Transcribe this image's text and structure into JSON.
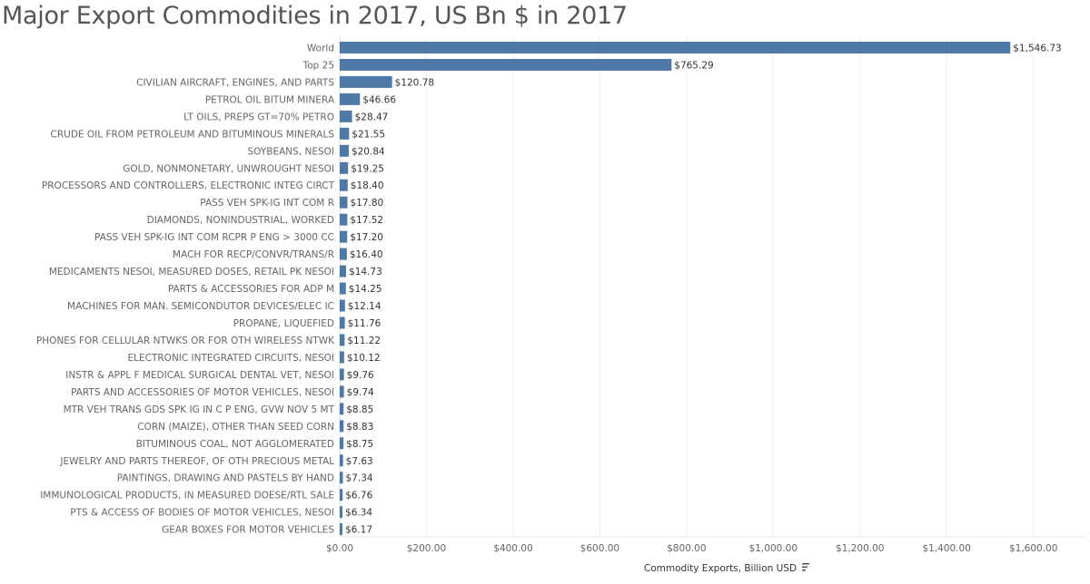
{
  "chart_data": {
    "type": "bar",
    "orientation": "horizontal",
    "title": "Major Export Commodities in 2017, US Bn $ in 2017",
    "xlabel": "Commodity Exports, Billion USD",
    "ylabel": "",
    "xlim": [
      0,
      1700
    ],
    "xticks": [
      0,
      200,
      400,
      600,
      800,
      1000,
      1200,
      1400,
      1600
    ],
    "xtick_labels": [
      "$0.00",
      "$200.00",
      "$400.00",
      "$600.00",
      "$800.00",
      "$1,000.00",
      "$1,200.00",
      "$1,400.00",
      "$1,600.00"
    ],
    "grid": true,
    "bar_color": "#4e79a7",
    "categories": [
      "World",
      "Top 25",
      "CIVILIAN AIRCRAFT, ENGINES, AND PARTS",
      "PETROL OIL BITUM MINERA",
      "LT OILS, PREPS GT=70% PETRO",
      "CRUDE OIL FROM PETROLEUM AND BITUMINOUS MINERALS",
      "SOYBEANS, NESOI",
      "GOLD, NONMONETARY, UNWROUGHT NESOI",
      "PROCESSORS AND CONTROLLERS, ELECTRONIC INTEG CIRCT",
      "PASS VEH SPK-IG INT COM R",
      "DIAMONDS, NONINDUSTRIAL, WORKED",
      "PASS VEH SPK-IG INT COM RCPR P ENG > 3000 CC",
      "MACH FOR RECP/CONVR/TRANS/R",
      "MEDICAMENTS NESOI, MEASURED DOSES, RETAIL PK NESOI",
      "PARTS & ACCESSORIES FOR ADP M",
      "MACHINES FOR MAN. SEMICONDUTOR DEVICES/ELEC IC",
      "PROPANE, LIQUEFIED",
      "PHONES FOR CELLULAR NTWKS OR FOR OTH WIRELESS NTWK",
      "ELECTRONIC INTEGRATED CIRCUITS, NESOI",
      "INSTR & APPL F MEDICAL SURGICAL DENTAL VET, NESOI",
      "PARTS AND ACCESSORIES OF MOTOR VEHICLES, NESOI",
      "MTR VEH TRANS GDS SPK IG IN C P ENG, GVW NOV 5 MT",
      "CORN (MAIZE), OTHER THAN SEED CORN",
      "BITUMINOUS COAL, NOT AGGLOMERATED",
      "JEWELRY AND PARTS THEREOF, OF OTH PRECIOUS METAL",
      "PAINTINGS, DRAWING AND PASTELS BY HAND",
      "IMMUNOLOGICAL PRODUCTS, IN MEASURED DOESE/RTL SALE",
      "PTS & ACCESS OF BODIES OF MOTOR VEHICLES, NESOI",
      "GEAR BOXES FOR MOTOR VEHICLES"
    ],
    "values": [
      1546.73,
      765.29,
      120.78,
      46.66,
      28.47,
      21.55,
      20.84,
      19.25,
      18.4,
      17.8,
      17.52,
      17.2,
      16.4,
      14.73,
      14.25,
      12.14,
      11.76,
      11.22,
      10.12,
      9.76,
      9.74,
      8.85,
      8.83,
      8.75,
      7.63,
      7.34,
      6.76,
      6.34,
      6.17
    ],
    "value_labels": [
      "$1,546.73",
      "$765.29",
      "$120.78",
      "$46.66",
      "$28.47",
      "$21.55",
      "$20.84",
      "$19.25",
      "$18.40",
      "$17.80",
      "$17.52",
      "$17.20",
      "$16.40",
      "$14.73",
      "$14.25",
      "$12.14",
      "$11.76",
      "$11.22",
      "$10.12",
      "$9.76",
      "$9.74",
      "$8.85",
      "$8.83",
      "$8.75",
      "$7.63",
      "$7.34",
      "$6.76",
      "$6.34",
      "$6.17"
    ]
  }
}
